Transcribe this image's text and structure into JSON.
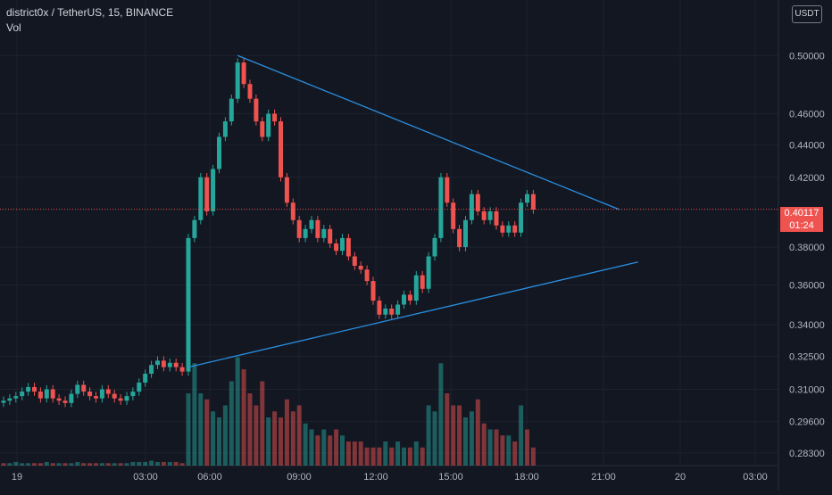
{
  "chart_data": {
    "type": "candlestick",
    "symbol": "district0x / TetherUS, 15, BINANCE",
    "volume_label": "Vol",
    "quote_unit": "USDT",
    "last_price": "0.40117",
    "countdown": "01:24",
    "y_ticks": [
      "0.50000",
      "0.46000",
      "0.44000",
      "0.42000",
      "0.38000",
      "0.36000",
      "0.34000",
      "0.32500",
      "0.31000",
      "0.29600",
      "0.28300"
    ],
    "y_tick_values": [
      0.5,
      0.46,
      0.44,
      0.42,
      0.38,
      0.36,
      0.34,
      0.325,
      0.31,
      0.296,
      0.283
    ],
    "x_ticks": [
      "19",
      "03:00",
      "06:00",
      "09:00",
      "12:00",
      "15:00",
      "18:00",
      "21:00",
      "20",
      "03:00"
    ],
    "scale": "log",
    "grid": true,
    "series": [
      {
        "price": 0.305,
        "dir": "down",
        "vol": 0.02
      },
      {
        "price": 0.306,
        "dir": "up",
        "vol": 0.02
      },
      {
        "price": 0.307,
        "dir": "up",
        "vol": 0.03
      },
      {
        "price": 0.309,
        "dir": "up",
        "vol": 0.02
      },
      {
        "price": 0.311,
        "dir": "up",
        "vol": 0.02
      },
      {
        "price": 0.309,
        "dir": "down",
        "vol": 0.02
      },
      {
        "price": 0.306,
        "dir": "down",
        "vol": 0.02
      },
      {
        "price": 0.31,
        "dir": "up",
        "vol": 0.03
      },
      {
        "price": 0.306,
        "dir": "down",
        "vol": 0.02
      },
      {
        "price": 0.305,
        "dir": "up",
        "vol": 0.02
      },
      {
        "price": 0.304,
        "dir": "down",
        "vol": 0.02
      },
      {
        "price": 0.308,
        "dir": "up",
        "vol": 0.02
      },
      {
        "price": 0.312,
        "dir": "up",
        "vol": 0.03
      },
      {
        "price": 0.309,
        "dir": "down",
        "vol": 0.02
      },
      {
        "price": 0.307,
        "dir": "down",
        "vol": 0.02
      },
      {
        "price": 0.306,
        "dir": "down",
        "vol": 0.02
      },
      {
        "price": 0.31,
        "dir": "up",
        "vol": 0.02
      },
      {
        "price": 0.308,
        "dir": "down",
        "vol": 0.02
      },
      {
        "price": 0.306,
        "dir": "up",
        "vol": 0.02
      },
      {
        "price": 0.305,
        "dir": "down",
        "vol": 0.02
      },
      {
        "price": 0.307,
        "dir": "up",
        "vol": 0.02
      },
      {
        "price": 0.309,
        "dir": "up",
        "vol": 0.03
      },
      {
        "price": 0.313,
        "dir": "up",
        "vol": 0.03
      },
      {
        "price": 0.317,
        "dir": "up",
        "vol": 0.03
      },
      {
        "price": 0.321,
        "dir": "up",
        "vol": 0.04
      },
      {
        "price": 0.323,
        "dir": "up",
        "vol": 0.03
      },
      {
        "price": 0.32,
        "dir": "down",
        "vol": 0.03
      },
      {
        "price": 0.322,
        "dir": "up",
        "vol": 0.03
      },
      {
        "price": 0.32,
        "dir": "down",
        "vol": 0.03
      },
      {
        "price": 0.318,
        "dir": "down",
        "vol": 0.02
      },
      {
        "price": 0.385,
        "dir": "up",
        "vol": 0.6
      },
      {
        "price": 0.395,
        "dir": "up",
        "vol": 0.85
      },
      {
        "price": 0.42,
        "dir": "up",
        "vol": 0.6
      },
      {
        "price": 0.4,
        "dir": "down",
        "vol": 0.55
      },
      {
        "price": 0.425,
        "dir": "up",
        "vol": 0.45
      },
      {
        "price": 0.445,
        "dir": "up",
        "vol": 0.4
      },
      {
        "price": 0.455,
        "dir": "up",
        "vol": 0.5
      },
      {
        "price": 0.47,
        "dir": "up",
        "vol": 0.7
      },
      {
        "price": 0.495,
        "dir": "up",
        "vol": 0.9
      },
      {
        "price": 0.48,
        "dir": "down",
        "vol": 0.8
      },
      {
        "price": 0.47,
        "dir": "down",
        "vol": 0.6
      },
      {
        "price": 0.455,
        "dir": "down",
        "vol": 0.5
      },
      {
        "price": 0.445,
        "dir": "down",
        "vol": 0.7
      },
      {
        "price": 0.46,
        "dir": "up",
        "vol": 0.4
      },
      {
        "price": 0.455,
        "dir": "down",
        "vol": 0.45
      },
      {
        "price": 0.42,
        "dir": "down",
        "vol": 0.4
      },
      {
        "price": 0.405,
        "dir": "down",
        "vol": 0.55
      },
      {
        "price": 0.395,
        "dir": "down",
        "vol": 0.45
      },
      {
        "price": 0.385,
        "dir": "down",
        "vol": 0.5
      },
      {
        "price": 0.39,
        "dir": "up",
        "vol": 0.35
      },
      {
        "price": 0.395,
        "dir": "up",
        "vol": 0.3
      },
      {
        "price": 0.385,
        "dir": "down",
        "vol": 0.25
      },
      {
        "price": 0.39,
        "dir": "up",
        "vol": 0.3
      },
      {
        "price": 0.382,
        "dir": "down",
        "vol": 0.25
      },
      {
        "price": 0.378,
        "dir": "down",
        "vol": 0.3
      },
      {
        "price": 0.385,
        "dir": "up",
        "vol": 0.25
      },
      {
        "price": 0.375,
        "dir": "down",
        "vol": 0.2
      },
      {
        "price": 0.37,
        "dir": "down",
        "vol": 0.2
      },
      {
        "price": 0.368,
        "dir": "down",
        "vol": 0.2
      },
      {
        "price": 0.362,
        "dir": "down",
        "vol": 0.15
      },
      {
        "price": 0.352,
        "dir": "down",
        "vol": 0.15
      },
      {
        "price": 0.345,
        "dir": "down",
        "vol": 0.15
      },
      {
        "price": 0.348,
        "dir": "up",
        "vol": 0.2
      },
      {
        "price": 0.345,
        "dir": "down",
        "vol": 0.15
      },
      {
        "price": 0.35,
        "dir": "up",
        "vol": 0.2
      },
      {
        "price": 0.355,
        "dir": "up",
        "vol": 0.15
      },
      {
        "price": 0.352,
        "dir": "down",
        "vol": 0.15
      },
      {
        "price": 0.365,
        "dir": "up",
        "vol": 0.2
      },
      {
        "price": 0.358,
        "dir": "down",
        "vol": 0.15
      },
      {
        "price": 0.375,
        "dir": "up",
        "vol": 0.5
      },
      {
        "price": 0.385,
        "dir": "up",
        "vol": 0.45
      },
      {
        "price": 0.42,
        "dir": "up",
        "vol": 0.85
      },
      {
        "price": 0.405,
        "dir": "down",
        "vol": 0.6
      },
      {
        "price": 0.39,
        "dir": "down",
        "vol": 0.5
      },
      {
        "price": 0.38,
        "dir": "down",
        "vol": 0.5
      },
      {
        "price": 0.395,
        "dir": "up",
        "vol": 0.4
      },
      {
        "price": 0.41,
        "dir": "up",
        "vol": 0.45
      },
      {
        "price": 0.4,
        "dir": "down",
        "vol": 0.55
      },
      {
        "price": 0.395,
        "dir": "down",
        "vol": 0.35
      },
      {
        "price": 0.4,
        "dir": "up",
        "vol": 0.3
      },
      {
        "price": 0.392,
        "dir": "down",
        "vol": 0.3
      },
      {
        "price": 0.388,
        "dir": "down",
        "vol": 0.25
      },
      {
        "price": 0.392,
        "dir": "up",
        "vol": 0.25
      },
      {
        "price": 0.388,
        "dir": "down",
        "vol": 0.2
      },
      {
        "price": 0.405,
        "dir": "up",
        "vol": 0.5
      },
      {
        "price": 0.41,
        "dir": "down",
        "vol": 0.3
      },
      {
        "price": 0.401,
        "dir": "down",
        "vol": 0.15
      }
    ],
    "trendlines": [
      {
        "from": [
          38,
          0.5
        ],
        "to": [
          100,
          0.401
        ]
      },
      {
        "from": [
          30,
          0.32
        ],
        "to": [
          103,
          0.372
        ]
      }
    ]
  }
}
